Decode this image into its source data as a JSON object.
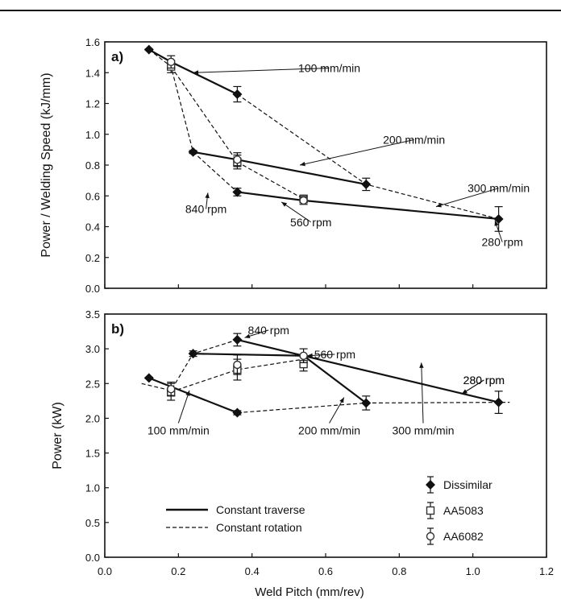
{
  "chart_data": [
    {
      "type": "scatter",
      "panel": "a)",
      "ylabel": "Power / Welding Speed (kJ/mm)",
      "ylim": [
        0,
        1.6
      ],
      "yticks": [
        "0.0",
        "0.2",
        "0.4",
        "0.6",
        "0.8",
        "1.0",
        "1.2",
        "1.4",
        "1.6"
      ],
      "series": [
        {
          "name": "Dissimilar",
          "marker": "diamond",
          "points": [
            [
              0.12,
              1.55
            ],
            [
              0.24,
              0.885
            ],
            [
              0.36,
              0.625
            ],
            [
              0.36,
              1.26
            ],
            [
              0.71,
              0.675
            ],
            [
              1.07,
              0.45
            ]
          ],
          "errors": [
            0.005,
            0.01,
            0.025,
            0.05,
            0.04,
            0.08
          ]
        },
        {
          "name": "AA5083",
          "marker": "square",
          "points": [
            [
              0.18,
              1.44
            ],
            [
              0.36,
              0.82
            ],
            [
              0.54,
              0.58
            ]
          ],
          "errors": [
            0.04,
            0.045,
            0.025
          ]
        },
        {
          "name": "AA6082",
          "marker": "circle",
          "points": [
            [
              0.18,
              1.47
            ],
            [
              0.36,
              0.835
            ],
            [
              0.54,
              0.57
            ]
          ],
          "errors": [
            0.04,
            0.045,
            0.025
          ]
        }
      ],
      "lines": [
        {
          "style": "solid",
          "points": [
            [
              0.12,
              1.55
            ],
            [
              0.18,
              1.47
            ],
            [
              0.36,
              1.26
            ]
          ]
        },
        {
          "style": "solid",
          "points": [
            [
              0.24,
              0.885
            ],
            [
              0.36,
              0.835
            ],
            [
              0.71,
              0.675
            ]
          ]
        },
        {
          "style": "solid",
          "points": [
            [
              0.36,
              0.625
            ],
            [
              0.54,
              0.57
            ],
            [
              1.07,
              0.45
            ]
          ]
        },
        {
          "style": "dashed",
          "points": [
            [
              0.12,
              1.55
            ],
            [
              0.18,
              1.44
            ],
            [
              0.24,
              0.885
            ],
            [
              0.36,
              0.625
            ]
          ]
        },
        {
          "style": "dashed",
          "points": [
            [
              0.18,
              1.44
            ],
            [
              0.36,
              0.82
            ],
            [
              0.54,
              0.58
            ]
          ]
        },
        {
          "style": "dashed",
          "points": [
            [
              0.36,
              1.26
            ],
            [
              0.71,
              0.675
            ],
            [
              1.07,
              0.45
            ]
          ]
        }
      ],
      "annotations": [
        {
          "text": "100 mm/min",
          "at": [
            0.61,
            1.43
          ],
          "arrow_to": [
            0.24,
            1.4
          ]
        },
        {
          "text": "200 mm/min",
          "at": [
            0.84,
            0.965
          ],
          "arrow_to": [
            0.53,
            0.8
          ]
        },
        {
          "text": "300 mm/min",
          "at": [
            1.07,
            0.65
          ],
          "arrow_to": [
            0.9,
            0.53
          ]
        },
        {
          "text": "840 rpm",
          "at": [
            0.275,
            0.515
          ],
          "arrow_to": [
            0.28,
            0.62
          ]
        },
        {
          "text": "560 rpm",
          "at": [
            0.56,
            0.43
          ],
          "arrow_to": [
            0.48,
            0.56
          ]
        },
        {
          "text": "280 rpm",
          "at": [
            1.08,
            0.3
          ],
          "arrow_to": [
            1.06,
            0.44
          ]
        }
      ]
    },
    {
      "type": "scatter",
      "panel": "b)",
      "xlabel": "Weld Pitch (mm/rev)",
      "ylabel": "Power (kW)",
      "xlim": [
        0,
        1.2
      ],
      "ylim": [
        0,
        3.5
      ],
      "xticks": [
        "0.0",
        "0.2",
        "0.4",
        "0.6",
        "0.8",
        "1.0",
        "1.2"
      ],
      "yticks": [
        "0.0",
        "0.5",
        "1.0",
        "1.5",
        "2.0",
        "2.5",
        "3.0",
        "3.5"
      ],
      "series": [
        {
          "name": "Dissimilar",
          "marker": "diamond",
          "points": [
            [
              0.12,
              2.58
            ],
            [
              0.24,
              2.93
            ],
            [
              0.36,
              3.13
            ],
            [
              0.36,
              2.08
            ],
            [
              0.71,
              2.22
            ],
            [
              1.07,
              2.23
            ]
          ],
          "errors": [
            0.01,
            0.04,
            0.09,
            0.03,
            0.1,
            0.16
          ]
        },
        {
          "name": "AA5083",
          "marker": "square",
          "points": [
            [
              0.18,
              2.38
            ],
            [
              0.36,
              2.7
            ],
            [
              0.54,
              2.78
            ]
          ],
          "errors": [
            0.12,
            0.15,
            0.1
          ]
        },
        {
          "name": "AA6082",
          "marker": "circle",
          "points": [
            [
              0.18,
              2.42
            ],
            [
              0.36,
              2.77
            ],
            [
              0.54,
              2.9
            ]
          ],
          "errors": [
            0.1,
            0.14,
            0.1
          ]
        }
      ],
      "lines": [
        {
          "style": "solid",
          "points": [
            [
              0.12,
              2.58
            ],
            [
              0.36,
              2.08
            ]
          ]
        },
        {
          "style": "solid",
          "points": [
            [
              0.24,
              2.93
            ],
            [
              0.54,
              2.9
            ],
            [
              0.71,
              2.22
            ]
          ]
        },
        {
          "style": "solid",
          "points": [
            [
              0.36,
              3.13
            ],
            [
              0.54,
              2.9
            ],
            [
              1.07,
              2.23
            ]
          ]
        },
        {
          "style": "dashed",
          "points": [
            [
              0.1,
              2.5
            ],
            [
              0.18,
              2.4
            ],
            [
              0.24,
              2.93
            ],
            [
              0.36,
              3.13
            ]
          ]
        },
        {
          "style": "dashed",
          "points": [
            [
              0.18,
              2.38
            ],
            [
              0.36,
              2.7
            ],
            [
              0.54,
              2.85
            ]
          ]
        },
        {
          "style": "dashed",
          "points": [
            [
              0.36,
              2.08
            ],
            [
              0.71,
              2.22
            ],
            [
              1.1,
              2.23
            ]
          ]
        }
      ],
      "annotations": [
        {
          "text": "840 rpm",
          "at": [
            0.445,
            3.27
          ],
          "arrow_to": [
            0.38,
            3.16
          ]
        },
        {
          "text": "560 rpm",
          "at": [
            0.625,
            2.92
          ],
          "arrow_to": [
            0.55,
            2.9
          ]
        },
        {
          "text": "280 rpm",
          "at": [
            1.03,
            2.55
          ],
          "arrow_to": [
            0.97,
            2.35
          ]
        },
        {
          "text": "100 mm/min",
          "at": [
            0.2,
            1.93
          ],
          "arrow_to": [
            0.23,
            2.4
          ]
        },
        {
          "text": "200 mm/min",
          "at": [
            0.61,
            1.93
          ],
          "arrow_to": [
            0.65,
            2.3
          ]
        },
        {
          "text": "300 mm/min",
          "at": [
            0.865,
            1.93
          ],
          "arrow_to": [
            0.86,
            2.8
          ]
        },
        {
          "text": "280 rpm",
          "at": [
            1.03,
            2.55
          ],
          "arrow_to": [
            0.97,
            2.35
          ]
        }
      ],
      "legend": {
        "placement": "bottom-right",
        "items": [
          {
            "label": "Dissimilar",
            "marker": "diamond"
          },
          {
            "label": "AA5083",
            "marker": "square"
          },
          {
            "label": "AA6082",
            "marker": "circle"
          }
        ]
      },
      "line_legend": {
        "placement": "bottom-center",
        "items": [
          {
            "label": "Constant traverse",
            "style": "solid"
          },
          {
            "label": "Constant rotation",
            "style": "dashed"
          }
        ]
      }
    }
  ]
}
